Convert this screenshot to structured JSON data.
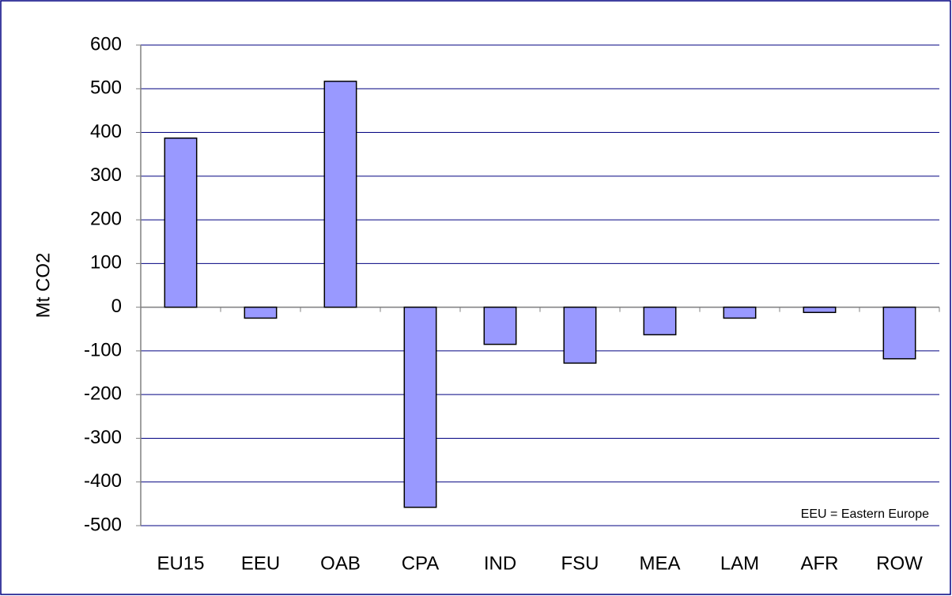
{
  "chart_data": {
    "type": "bar",
    "y_label": "Mt CO2",
    "annotation": "EEU = Eastern Europe",
    "categories": [
      "EU15",
      "EEU",
      "OAB",
      "CPA",
      "IND",
      "FSU",
      "MEA",
      "LAM",
      "AFR",
      "ROW"
    ],
    "values": [
      387,
      -25,
      517,
      -458,
      -85,
      -128,
      -63,
      -25,
      -12,
      -118
    ],
    "color": "#9999ff",
    "ylim": [
      -500,
      600
    ],
    "yticks": [
      -500,
      -400,
      -300,
      -200,
      -100,
      0,
      100,
      200,
      300,
      400,
      500,
      600
    ],
    "grid": true
  }
}
